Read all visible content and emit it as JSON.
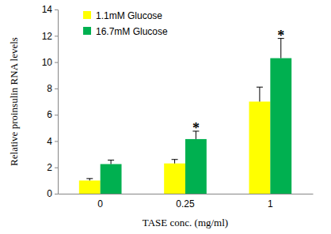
{
  "chart_data": {
    "type": "bar",
    "x_label": "TASE conc. (mg/ml)",
    "y_label": "Relative proinsulin RNA levels",
    "categories": [
      "0",
      "0.25",
      "1"
    ],
    "series": [
      {
        "name": "1.1mM Glucose",
        "color": "#ffff00",
        "values": [
          1.0,
          2.3,
          7.0
        ],
        "errors": [
          0.15,
          0.3,
          1.1
        ]
      },
      {
        "name": "16.7mM Glucose",
        "color": "#00b050",
        "values": [
          2.25,
          4.15,
          10.3
        ],
        "errors": [
          0.3,
          0.6,
          1.5
        ]
      }
    ],
    "ylim": [
      0,
      14
    ],
    "yticks": [
      0,
      2,
      4,
      6,
      8,
      10,
      12,
      14
    ],
    "grid": false,
    "legend": "upper left",
    "annotations": [
      {
        "text": "*",
        "category": "0.25",
        "series": "16.7mM Glucose"
      },
      {
        "text": "*",
        "category": "1",
        "series": "16.7mM Glucose"
      }
    ]
  }
}
